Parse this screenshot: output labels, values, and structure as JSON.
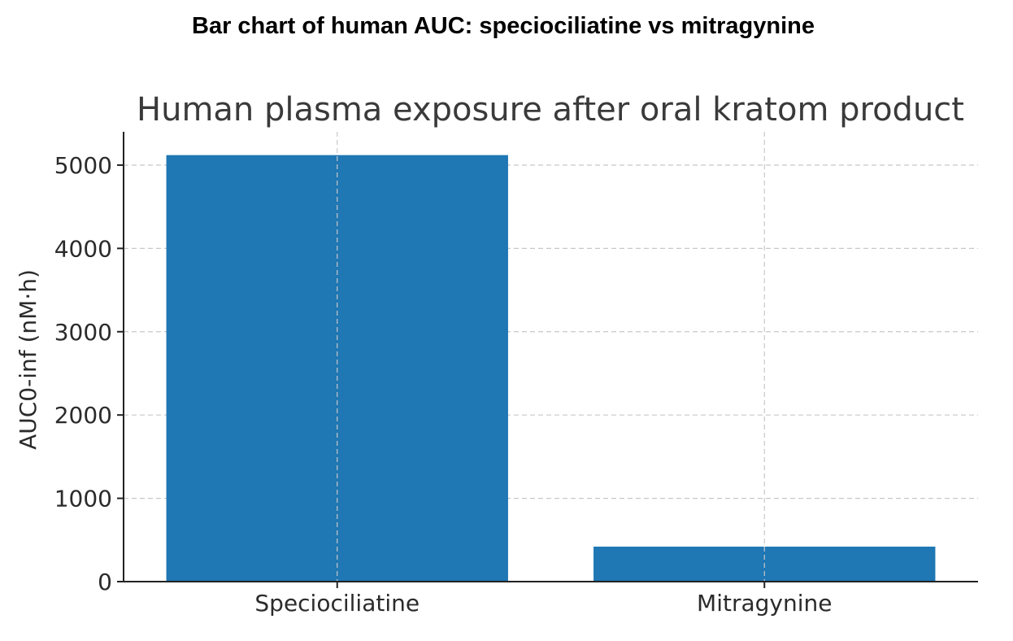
{
  "heading": "Bar chart of human AUC: speciociliatine vs mitragynine",
  "chart_data": {
    "type": "bar",
    "title": "Human plasma exposure after oral kratom product",
    "xlabel": "",
    "ylabel": "AUC0-inf (nM·h)",
    "categories": [
      "Speciociliatine",
      "Mitragynine"
    ],
    "values": [
      5120,
      420
    ],
    "ylim": [
      0,
      5400
    ],
    "yticks": [
      0,
      1000,
      2000,
      3000,
      4000,
      5000
    ],
    "grid": true,
    "legend": "none",
    "bar_color": "#1f77b4"
  }
}
